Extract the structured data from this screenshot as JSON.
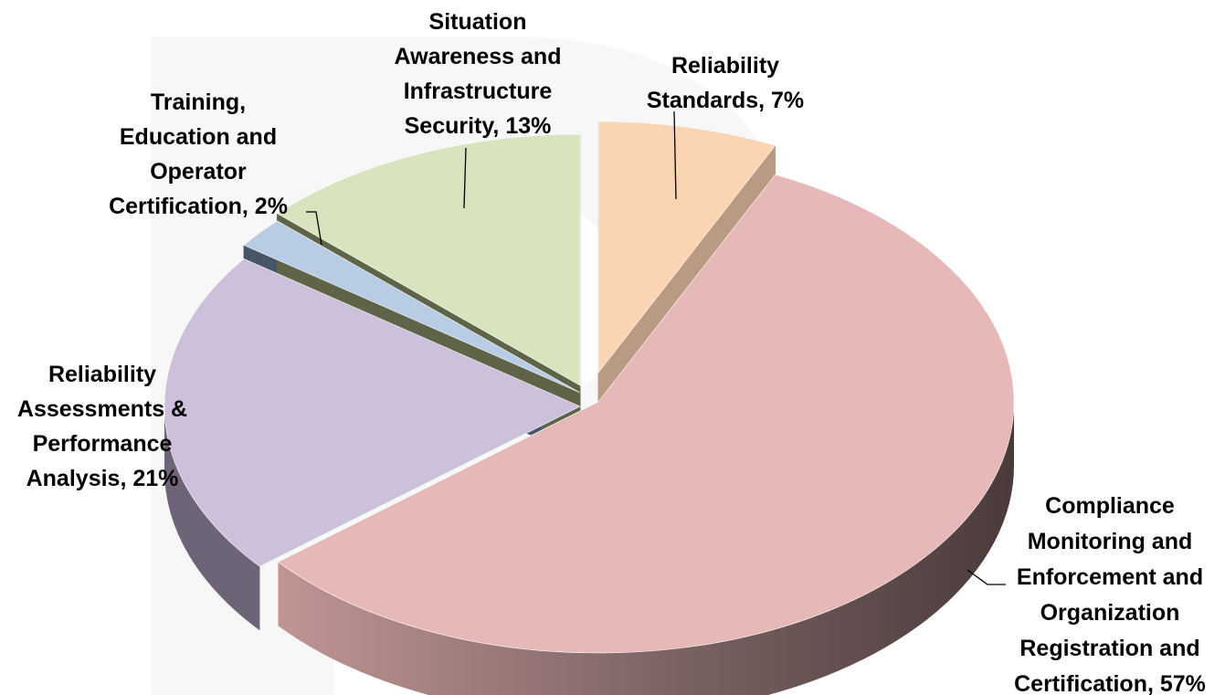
{
  "chart_data": {
    "type": "pie",
    "title": "",
    "style": "3d-exploded",
    "legend": "none",
    "slices": [
      {
        "label_lines": [
          "Reliability",
          "Standards, 7%"
        ],
        "category": "Reliability Standards",
        "value": 7,
        "top_color": "#fbd4b4",
        "side_color": "#b99a83"
      },
      {
        "label_lines": [
          "Compliance",
          "Monitoring and",
          "Enforcement and",
          "Organization",
          "Registration and",
          "Certification, 57%"
        ],
        "category": "Compliance Monitoring and Enforcement and Organization Registration and Certification",
        "value": 57,
        "top_color": "#e6b8b7",
        "side_color": "#5a4746"
      },
      {
        "label_lines": [
          "Reliability",
          "Assessments &",
          "Performance",
          "Analysis, 21%"
        ],
        "category": "Reliability Assessments & Performance Analysis",
        "value": 21,
        "top_color": "#ccc0da",
        "side_color": "#6e6478"
      },
      {
        "label_lines": [
          "Training,",
          "Education and",
          "Operator",
          "Certification, 2%"
        ],
        "category": "Training, Education and Operator Certification",
        "value": 2,
        "top_color": "#b8cce4",
        "side_color": "#465666"
      },
      {
        "label_lines": [
          "Situation",
          "Awareness and",
          "Infrastructure",
          "Security, 13%"
        ],
        "category": "Situation Awareness and Infrastructure Security",
        "value": 13,
        "top_color": "#d7e4bd",
        "side_color": "#5f6347"
      }
    ]
  }
}
